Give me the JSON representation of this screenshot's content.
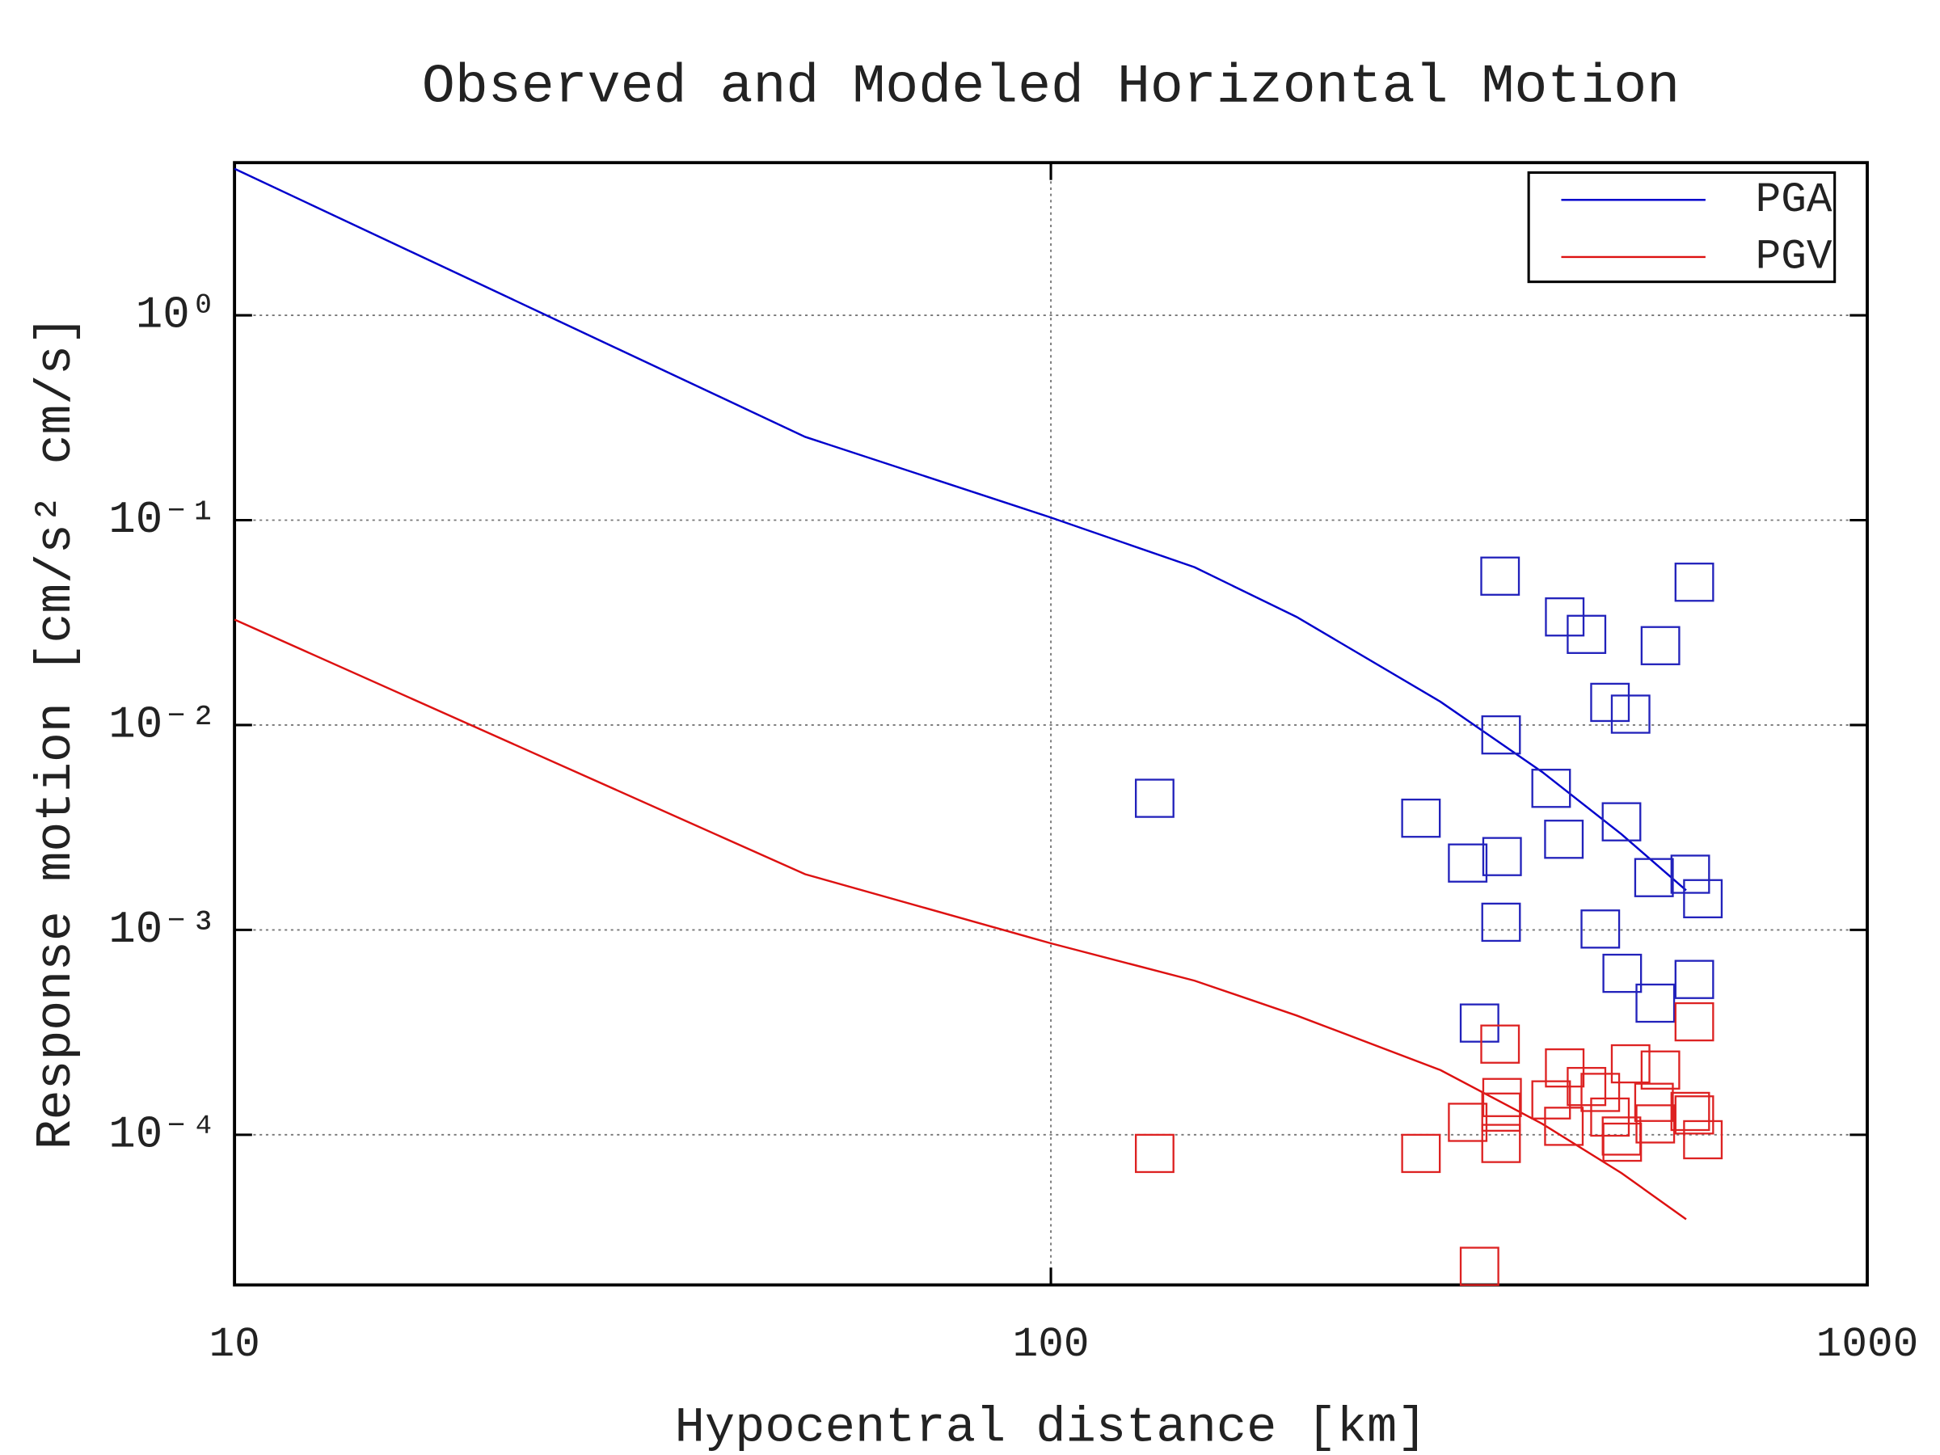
{
  "chart_data": {
    "type": "line",
    "title": "Observed and Modeled Horizontal Motion",
    "x_label": "Hypocentral distance [km]",
    "y_label": "Response motion  [cm/s²  cm/s]",
    "xlog": true,
    "ylog": true,
    "grid": true,
    "legend": "upper right",
    "xlim": [
      10,
      1000
    ],
    "ylim": [
      1.85e-05,
      5.56
    ],
    "xticks": [
      10,
      100,
      1000
    ],
    "yticks": [
      {
        "value": 0.0001,
        "label": "10⁻⁴"
      },
      {
        "value": 0.001,
        "label": "10⁻³"
      },
      {
        "value": 0.01,
        "label": "10⁻²"
      },
      {
        "value": 0.1,
        "label": "10⁻¹"
      },
      {
        "value": 1,
        "label": "10⁰"
      }
    ],
    "series": [
      {
        "name": "PGA",
        "type": "line",
        "color": "#0000cc",
        "x": [
          10,
          50,
          100,
          150,
          200,
          300,
          400,
          500,
          600
        ],
        "values": [
          5.19,
          0.255,
          0.103,
          0.0589,
          0.0337,
          0.013,
          0.00589,
          0.00293,
          0.00156
        ]
      },
      {
        "name": "PGV",
        "type": "line",
        "color": "#dd1111",
        "x": [
          10,
          50,
          100,
          150,
          200,
          300,
          400,
          500,
          600
        ],
        "values": [
          0.0327,
          0.00187,
          0.00086,
          0.000565,
          0.000382,
          0.000207,
          0.000113,
          6.5e-05,
          3.87e-05
        ]
      },
      {
        "type": "scatter",
        "color": "#2222bb",
        "x": [
          355,
          426,
          453,
          558,
          614,
          484,
          513,
          356,
          134,
          410,
          284,
          425,
          500,
          324,
          357,
          548,
          607,
          629,
          356,
          471,
          501,
          614,
          550,
          335
        ],
        "values": [
          0.0533,
          0.0337,
          0.0277,
          0.0244,
          0.0498,
          0.0129,
          0.0113,
          0.00895,
          0.00439,
          0.00491,
          0.00351,
          0.00277,
          0.00337,
          0.00212,
          0.00228,
          0.0018,
          0.00187,
          0.00142,
          0.00109,
          0.00101,
          0.000614,
          0.000573,
          0.000439,
          0.000351
        ]
      },
      {
        "type": "scatter",
        "color": "#dd2222",
        "x": [
          355,
          134,
          284,
          324,
          357,
          356,
          356,
          335,
          410,
          426,
          425,
          453,
          471,
          484,
          500,
          501,
          513,
          548,
          558,
          550,
          607,
          614,
          629,
          614
        ],
        "values": [
          0.000277,
          8.11e-05,
          8.11e-05,
          0.000115,
          0.000152,
          0.000129,
          9.07e-05,
          2.28e-05,
          0.000148,
          0.000212,
          0.00011,
          0.000172,
          0.000161,
          0.000122,
          9.86e-05,
          9.2e-05,
          0.000222,
          0.000144,
          0.000207,
          0.000113,
          0.00013,
          0.000125,
          9.46e-05,
          0.000356
        ]
      }
    ]
  }
}
